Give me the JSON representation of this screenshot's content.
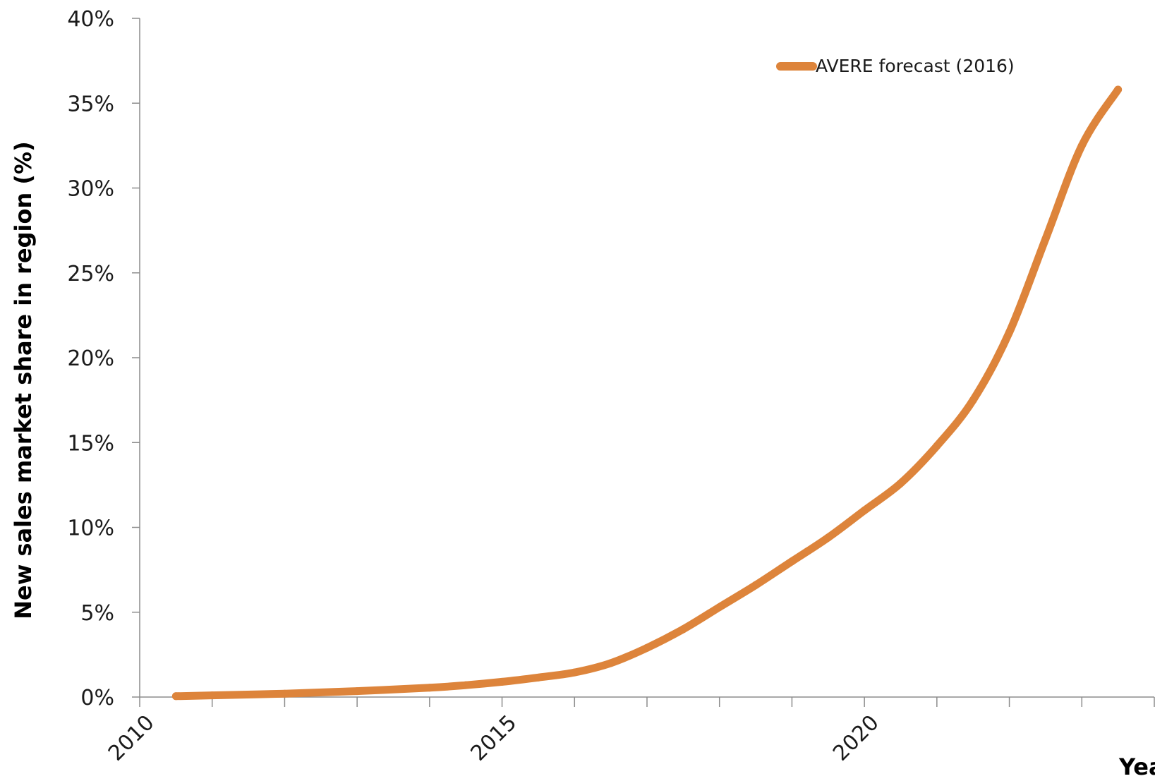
{
  "chart_data": {
    "type": "line",
    "title": "",
    "xlabel": "Year",
    "ylabel": "New sales market share in region (%)",
    "x_ticks": [
      2010,
      2011,
      2012,
      2013,
      2014,
      2015,
      2016,
      2017,
      2018,
      2019,
      2020,
      2021,
      2022,
      2023,
      2024
    ],
    "x_tick_labels": [
      "2010",
      "2015",
      "2020"
    ],
    "y_ticks": [
      0,
      5,
      10,
      15,
      20,
      25,
      30,
      35,
      40
    ],
    "y_tick_labels": [
      "0%",
      "5%",
      "10%",
      "15%",
      "20%",
      "25%",
      "30%",
      "35%",
      "40%"
    ],
    "xlim": [
      2010,
      2024
    ],
    "ylim": [
      0,
      40
    ],
    "grid": false,
    "legend_position": "top-right",
    "series": [
      {
        "name": "AVERE forecast (2016)",
        "color": "#dd843b",
        "x": [
          2010.5,
          2011,
          2012,
          2013,
          2014,
          2014.5,
          2015,
          2015.5,
          2016,
          2016.5,
          2017,
          2017.5,
          2018,
          2018.5,
          2019,
          2019.5,
          2020,
          2020.5,
          2021,
          2021.5,
          2022,
          2022.5,
          2023,
          2023.5
        ],
        "values": [
          0.05,
          0.1,
          0.2,
          0.35,
          0.55,
          0.7,
          0.9,
          1.15,
          1.45,
          2.0,
          2.9,
          4.0,
          5.3,
          6.6,
          8.0,
          9.4,
          11.0,
          12.6,
          14.8,
          17.5,
          21.5,
          27.0,
          32.5,
          35.8
        ]
      }
    ]
  }
}
